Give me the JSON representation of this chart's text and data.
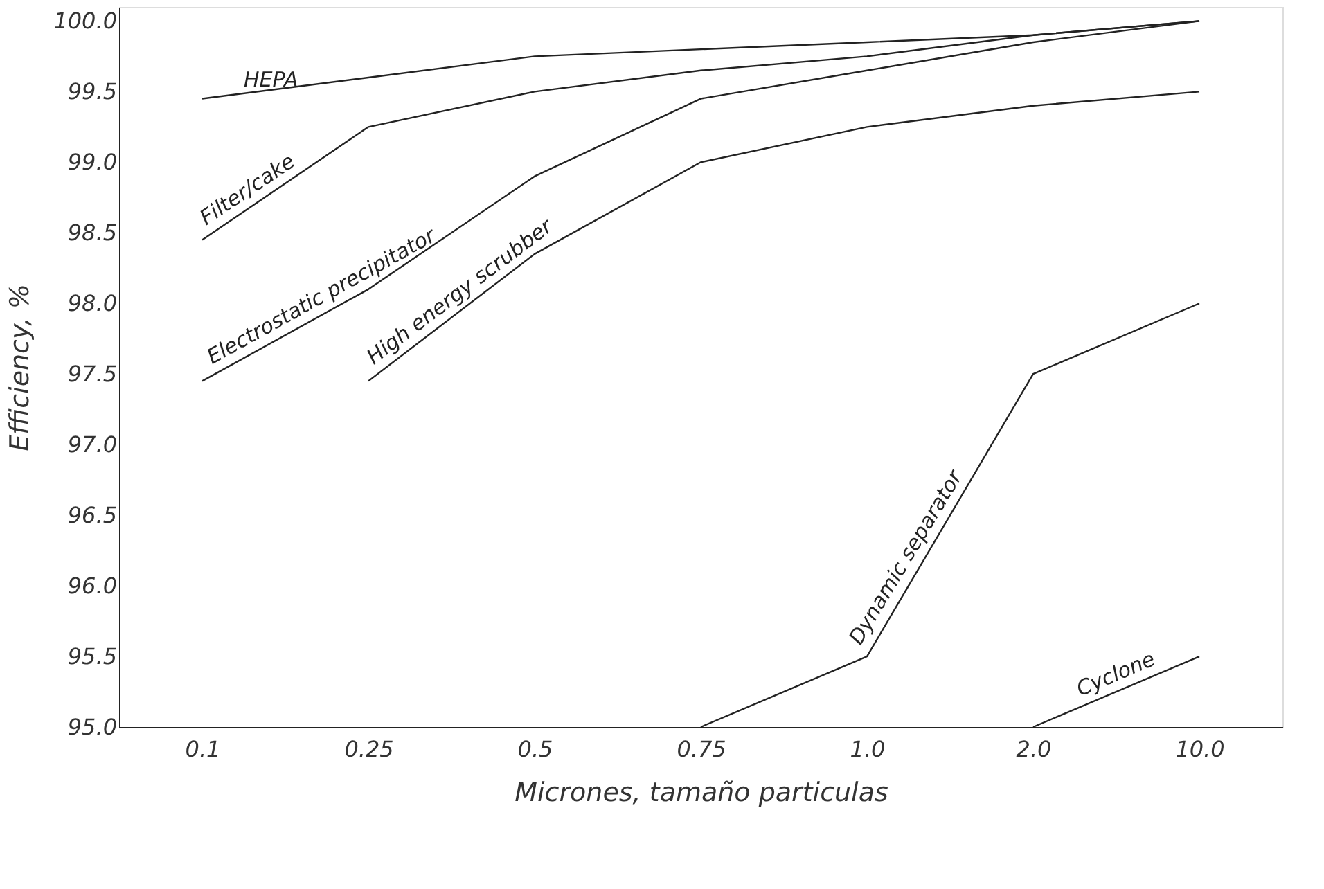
{
  "chart_data": {
    "type": "line",
    "xlabel": "Micrones, tamaño particulas",
    "ylabel": "Efficiency, %",
    "categories": [
      "0.1",
      "0.25",
      "0.5",
      "0.75",
      "1.0",
      "2.0",
      "10.0"
    ],
    "ylim": [
      95.0,
      100.1
    ],
    "yticks": [
      {
        "value": 95,
        "label": "95.0"
      },
      95.5,
      {
        "value": 96,
        "label": "96.0"
      },
      96.5,
      {
        "value": 97,
        "label": "97.0"
      },
      97.5,
      {
        "value": 98,
        "label": "98.0"
      },
      98.5,
      {
        "value": 99,
        "label": "99.0"
      },
      99.5,
      {
        "value": 100,
        "label": "100.0"
      }
    ],
    "grid": false,
    "marker": "none",
    "line_style": "solid",
    "series": [
      {
        "name": "HEPA",
        "color": "#222222",
        "values": [
          99.45,
          99.6,
          99.75,
          99.8,
          99.85,
          99.9,
          100.0
        ]
      },
      {
        "name": "Filter/cake",
        "color": "#222222",
        "values": [
          98.45,
          99.25,
          99.5,
          99.65,
          99.75,
          99.9,
          100.0
        ]
      },
      {
        "name": "Electrostatic precipitator",
        "color": "#222222",
        "values": [
          97.45,
          98.1,
          98.9,
          99.45,
          99.65,
          99.85,
          100.0
        ]
      },
      {
        "name": "High energy scrubber",
        "color": "#222222",
        "values": [
          null,
          97.45,
          98.35,
          99.0,
          99.25,
          99.4,
          99.5
        ]
      },
      {
        "name": "Dynamic separator",
        "color": "#222222",
        "values": [
          null,
          null,
          null,
          95.0,
          95.5,
          97.5,
          98.0
        ]
      },
      {
        "name": "Cyclone",
        "color": "#222222",
        "values": [
          null,
          null,
          null,
          null,
          null,
          95.0,
          95.5
        ]
      }
    ]
  }
}
